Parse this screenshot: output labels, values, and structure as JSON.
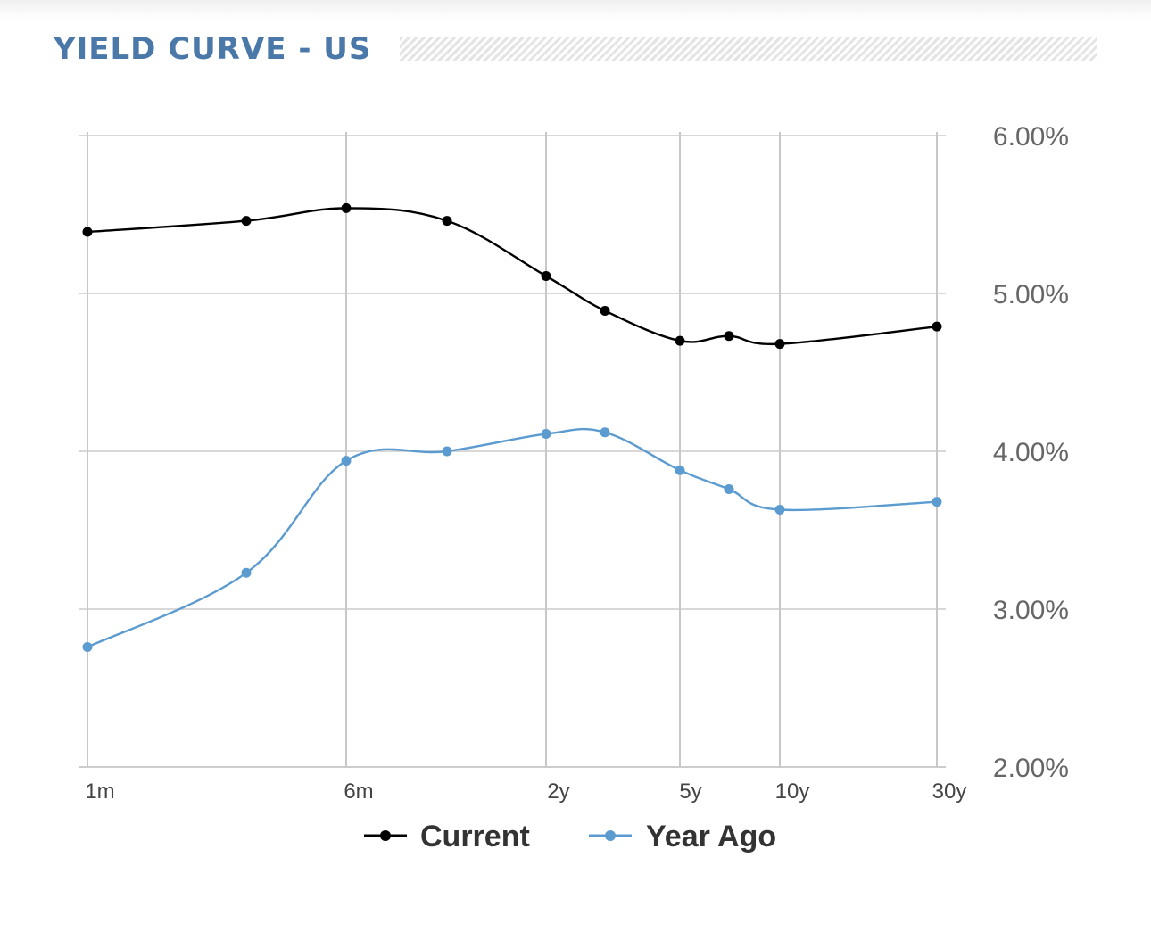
{
  "header": {
    "title": "YIELD CURVE - US"
  },
  "chart_data": {
    "type": "line",
    "x_ticks": [
      "1m",
      "6m",
      "2y",
      "5y",
      "10y",
      "30y"
    ],
    "y_ticks": [
      "6.00%",
      "5.00%",
      "4.00%",
      "3.00%",
      "2.00%"
    ],
    "ylim": [
      2.0,
      6.0
    ],
    "y_axis_position": "right",
    "grid": true,
    "legend_position": "bottom",
    "series": [
      {
        "name": "Current",
        "color": "#000000",
        "points": [
          {
            "x": "1m",
            "y": 5.39
          },
          {
            "x": "3m",
            "y": 5.46
          },
          {
            "x": "6m",
            "y": 5.54
          },
          {
            "x": "1y",
            "y": 5.46
          },
          {
            "x": "2y",
            "y": 5.11
          },
          {
            "x": "3y",
            "y": 4.89
          },
          {
            "x": "5y",
            "y": 4.7
          },
          {
            "x": "7y",
            "y": 4.73
          },
          {
            "x": "10y",
            "y": 4.68
          },
          {
            "x": "30y",
            "y": 4.79
          }
        ]
      },
      {
        "name": "Year Ago",
        "color": "#5b9bd0",
        "points": [
          {
            "x": "1m",
            "y": 2.76
          },
          {
            "x": "3m",
            "y": 3.23
          },
          {
            "x": "6m",
            "y": 3.94
          },
          {
            "x": "1y",
            "y": 4.0
          },
          {
            "x": "2y",
            "y": 4.11
          },
          {
            "x": "3y",
            "y": 4.12
          },
          {
            "x": "5y",
            "y": 3.88
          },
          {
            "x": "7y",
            "y": 3.76
          },
          {
            "x": "10y",
            "y": 3.63
          },
          {
            "x": "30y",
            "y": 3.68
          }
        ]
      }
    ]
  }
}
